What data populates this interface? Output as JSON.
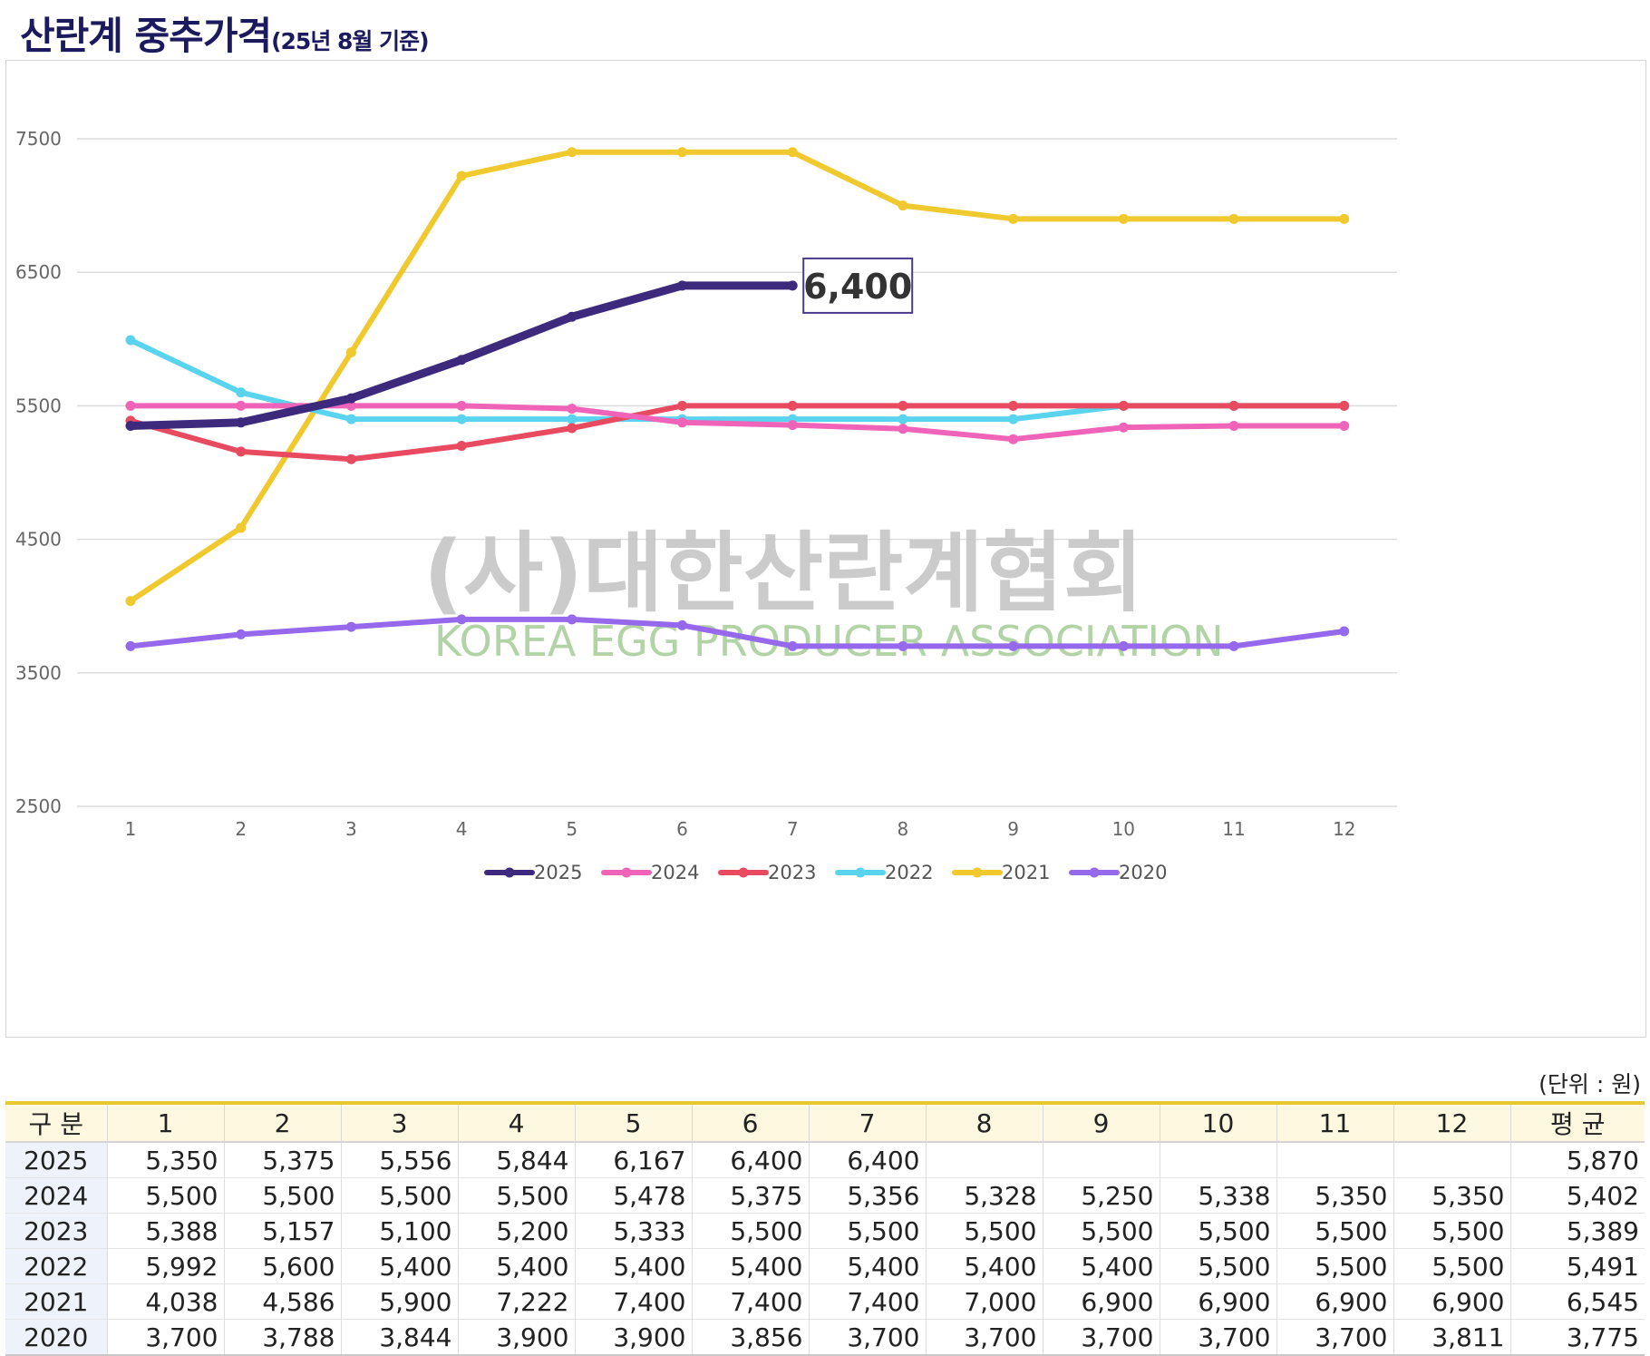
{
  "header": {
    "title": "산란계 중추가격",
    "subtitle": "(25년 8월 기준)"
  },
  "watermark": {
    "korean": "(사)대한산란계협회",
    "english": "KOREA EGG PRODUCER ASSOCIATION"
  },
  "callout": {
    "label": "6,400",
    "series": "2025",
    "month": 7
  },
  "chart_data": {
    "type": "line",
    "x": [
      1,
      2,
      3,
      4,
      5,
      6,
      7,
      8,
      9,
      10,
      11,
      12
    ],
    "ylim": [
      2500,
      8000
    ],
    "yticks": [
      2500,
      3500,
      4500,
      5500,
      6500,
      7500
    ],
    "grid": true,
    "legend_position": "bottom-center",
    "series": [
      {
        "name": "2025",
        "color": "#3d2a7d",
        "values": [
          5350,
          5375,
          5556,
          5844,
          6167,
          6400,
          6400,
          null,
          null,
          null,
          null,
          null
        ]
      },
      {
        "name": "2024",
        "color": "#ef64b8",
        "values": [
          5500,
          5500,
          5500,
          5500,
          5478,
          5375,
          5356,
          5328,
          5250,
          5338,
          5350,
          5350
        ]
      },
      {
        "name": "2023",
        "color": "#e84a5f",
        "values": [
          5388,
          5157,
          5100,
          5200,
          5333,
          5500,
          5500,
          5500,
          5500,
          5500,
          5500,
          5500
        ]
      },
      {
        "name": "2022",
        "color": "#5ad4ee",
        "values": [
          5992,
          5600,
          5400,
          5400,
          5400,
          5400,
          5400,
          5400,
          5400,
          5500,
          5500,
          5500
        ]
      },
      {
        "name": "2021",
        "color": "#efc92e",
        "values": [
          4038,
          4586,
          5900,
          7222,
          7400,
          7400,
          7400,
          7000,
          6900,
          6900,
          6900,
          6900
        ]
      },
      {
        "name": "2020",
        "color": "#9568ec",
        "values": [
          3700,
          3788,
          3844,
          3900,
          3900,
          3856,
          3700,
          3700,
          3700,
          3700,
          3700,
          3811
        ]
      }
    ]
  },
  "table": {
    "unit_note": "(단위 : 원)",
    "headers": [
      "구 분",
      "1",
      "2",
      "3",
      "4",
      "5",
      "6",
      "7",
      "8",
      "9",
      "10",
      "11",
      "12",
      "평 균"
    ],
    "rows": [
      [
        "2025",
        "5,350",
        "5,375",
        "5,556",
        "5,844",
        "6,167",
        "6,400",
        "6,400",
        "",
        "",
        "",
        "",
        "",
        "5,870"
      ],
      [
        "2024",
        "5,500",
        "5,500",
        "5,500",
        "5,500",
        "5,478",
        "5,375",
        "5,356",
        "5,328",
        "5,250",
        "5,338",
        "5,350",
        "5,350",
        "5,402"
      ],
      [
        "2023",
        "5,388",
        "5,157",
        "5,100",
        "5,200",
        "5,333",
        "5,500",
        "5,500",
        "5,500",
        "5,500",
        "5,500",
        "5,500",
        "5,500",
        "5,389"
      ],
      [
        "2022",
        "5,992",
        "5,600",
        "5,400",
        "5,400",
        "5,400",
        "5,400",
        "5,400",
        "5,400",
        "5,400",
        "5,500",
        "5,500",
        "5,500",
        "5,491"
      ],
      [
        "2021",
        "4,038",
        "4,586",
        "5,900",
        "7,222",
        "7,400",
        "7,400",
        "7,400",
        "7,000",
        "6,900",
        "6,900",
        "6,900",
        "6,900",
        "6,545"
      ],
      [
        "2020",
        "3,700",
        "3,788",
        "3,844",
        "3,900",
        "3,900",
        "3,856",
        "3,700",
        "3,700",
        "3,700",
        "3,700",
        "3,700",
        "3,811",
        "3,775"
      ]
    ]
  }
}
